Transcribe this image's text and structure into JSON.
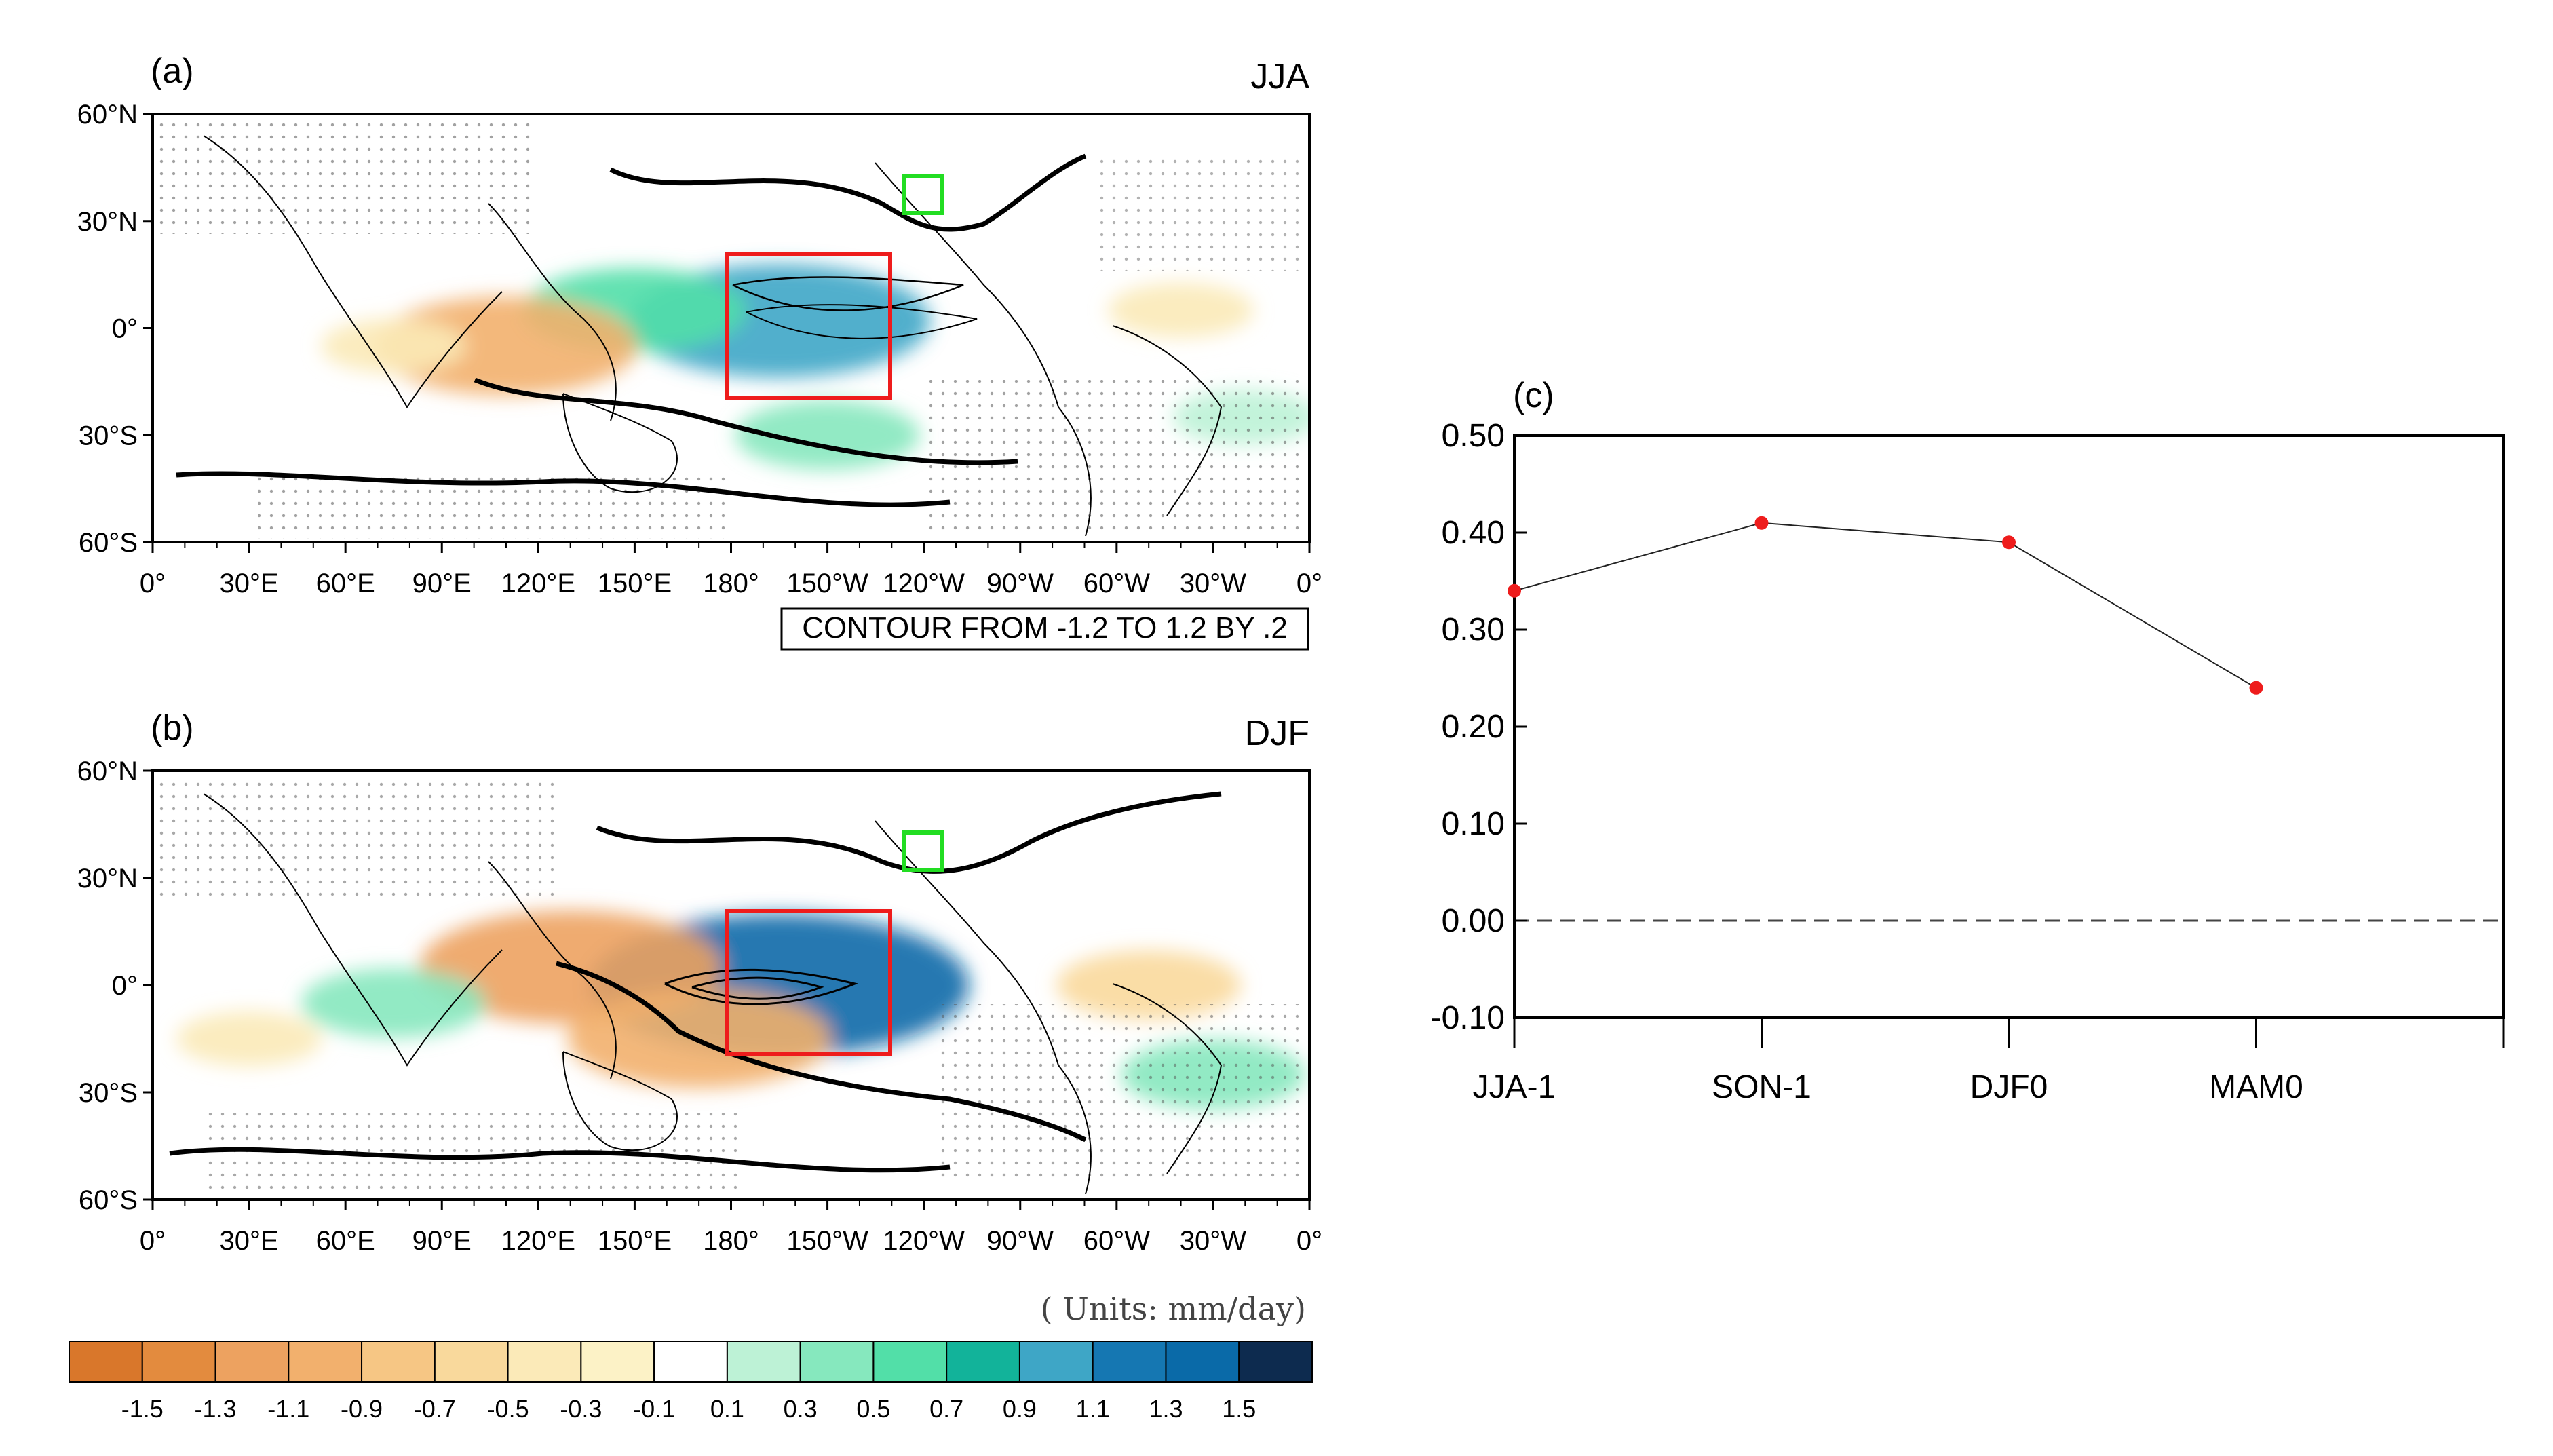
{
  "chart_data": [
    {
      "panel": "(a)",
      "type": "map",
      "season": "JJA",
      "lat_ticks": [
        "60°N",
        "30°N",
        "0°",
        "30°S",
        "60°S"
      ],
      "lon_ticks": [
        "0°",
        "30°E",
        "60°E",
        "90°E",
        "120°E",
        "150°E",
        "180°",
        "150°W",
        "120°W",
        "90°W",
        "60°W",
        "30°W",
        "0°"
      ],
      "contour_note": "CONTOUR FROM -1.2 TO 1.2 BY .2",
      "anomalies": [
        {
          "name": "central-pacific-wet",
          "lon": 195,
          "lat": 2,
          "value": 1.1
        },
        {
          "name": "west-pacific-wet",
          "lon": 150,
          "lat": 5,
          "value": 0.7
        },
        {
          "name": "maritime-dry",
          "lon": 110,
          "lat": -5,
          "value": -0.9
        },
        {
          "name": "south-pacific-wet",
          "lon": 210,
          "lat": -30,
          "value": 0.5
        },
        {
          "name": "indian-dry",
          "lon": 75,
          "lat": -5,
          "value": -0.3
        },
        {
          "name": "atlantic-dry",
          "lon": 320,
          "lat": 5,
          "value": -0.3
        },
        {
          "name": "atlantic-wet",
          "lon": 340,
          "lat": -25,
          "value": 0.3
        }
      ],
      "boxes": [
        {
          "name": "nino-box",
          "color": "#ee1c1c",
          "lon": [
            180,
            230
          ],
          "lat": [
            -20,
            20
          ]
        },
        {
          "name": "california-box",
          "color": "#22dd22",
          "lon": [
            235,
            245
          ],
          "lat": [
            32,
            42
          ]
        }
      ]
    },
    {
      "panel": "(b)",
      "type": "map",
      "season": "DJF",
      "lat_ticks": [
        "60°N",
        "30°N",
        "0°",
        "30°S",
        "60°S"
      ],
      "lon_ticks": [
        "0°",
        "30°E",
        "60°E",
        "90°E",
        "120°E",
        "150°E",
        "180°",
        "150°W",
        "120°W",
        "90°W",
        "60°W",
        "30°W",
        "0°"
      ],
      "anomalies": [
        {
          "name": "central-pacific-wet",
          "lon": 195,
          "lat": 0,
          "value": 1.5
        },
        {
          "name": "maritime-dry",
          "lon": 130,
          "lat": 5,
          "value": -1.1
        },
        {
          "name": "south-pacific-dry",
          "lon": 170,
          "lat": -15,
          "value": -0.9
        },
        {
          "name": "indian-wet",
          "lon": 75,
          "lat": -5,
          "value": 0.5
        },
        {
          "name": "africa-dry",
          "lon": 30,
          "lat": -15,
          "value": -0.3
        },
        {
          "name": "brazil-dry",
          "lon": 310,
          "lat": 0,
          "value": -0.5
        },
        {
          "name": "atlantic-wet",
          "lon": 330,
          "lat": -25,
          "value": 0.5
        }
      ],
      "boxes": [
        {
          "name": "nino-box",
          "color": "#ee1c1c",
          "lon": [
            180,
            230
          ],
          "lat": [
            -20,
            20
          ]
        },
        {
          "name": "california-box",
          "color": "#22dd22",
          "lon": [
            235,
            245
          ],
          "lat": [
            32,
            42
          ]
        }
      ]
    },
    {
      "panel": "(c)",
      "type": "line",
      "categories": [
        "JJA-1",
        "SON-1",
        "DJF0",
        "MAM0"
      ],
      "values": [
        0.34,
        0.41,
        0.39,
        0.24
      ],
      "ylim": [
        -0.1,
        0.5
      ],
      "yticks": [
        "-0.10",
        "0.00",
        "0.10",
        "0.20",
        "0.30",
        "0.40",
        "0.50"
      ],
      "reference_line": 0.0,
      "marker_color": "#ee1c1c"
    }
  ],
  "colorbar": {
    "units": "( Units: mm/day)",
    "ticks": [
      "-1.5",
      "-1.3",
      "-1.1",
      "-0.9",
      "-0.7",
      "-0.5",
      "-0.3",
      "-0.1",
      "0.1",
      "0.3",
      "0.5",
      "0.7",
      "0.9",
      "1.1",
      "1.3",
      "1.5"
    ],
    "colors": [
      "#d9772b",
      "#e38b3e",
      "#eda260",
      "#f2b06d",
      "#f6c684",
      "#f9d99c",
      "#fbeab8",
      "#fcf2c6",
      "#ffffff",
      "#bdf2d6",
      "#86e8be",
      "#52dfa8",
      "#12b39a",
      "#3ea6c6",
      "#1577b2",
      "#0a6aa8",
      "#0d2b4f"
    ]
  }
}
